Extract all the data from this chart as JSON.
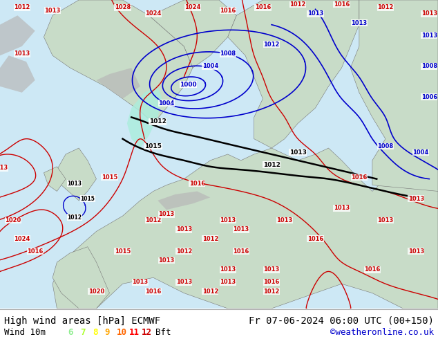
{
  "title_left": "High wind areas [hPa] ECMWF",
  "title_right": "Fr 07-06-2024 06:00 UTC (00+150)",
  "wind_label": "Wind 10m",
  "bft_label": "Bft",
  "bft_values": [
    "6",
    "7",
    "8",
    "9",
    "10",
    "11",
    "12"
  ],
  "bft_colors": [
    "#90ee90",
    "#adff2f",
    "#ffff00",
    "#ffa500",
    "#ff6600",
    "#ff0000",
    "#cc0000"
  ],
  "credit": "©weatheronline.co.uk",
  "credit_color": "#0000cc",
  "bg_color": "#ffffff",
  "text_color": "#000000",
  "font_size_title": 10,
  "font_size_legend": 9,
  "land_color": "#c8dcc8",
  "sea_color": "#cde8f5",
  "mountain_color": "#b8b8b8",
  "isobar_red": "#cc0000",
  "isobar_blue": "#0000cc",
  "isobar_black": "#000000",
  "cyan_fill": "#aaeedd",
  "figsize": [
    6.34,
    4.9
  ],
  "dpi": 100
}
